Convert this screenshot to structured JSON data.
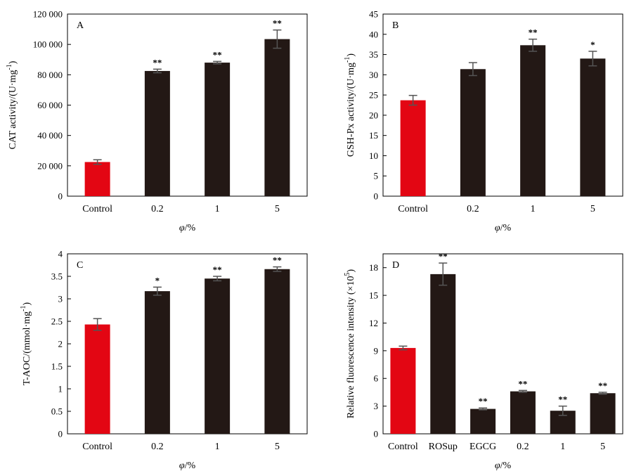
{
  "chart_data": [
    {
      "type": "bar",
      "panel_label": "A",
      "categories": [
        "Control",
        "0.2",
        "1",
        "5"
      ],
      "values": [
        22500,
        82500,
        88000,
        103500
      ],
      "errors": [
        1500,
        1200,
        800,
        6000
      ],
      "significance": [
        "",
        "**",
        "**",
        "**"
      ],
      "bar_colors": [
        "#e30613",
        "#231815",
        "#231815",
        "#231815"
      ],
      "ylabel": "CAT activity/(U·mg",
      "ylabel_sup": "-1",
      "ylabel_end": ")",
      "xlabel_var": "φ",
      "xlabel_unit": "/%",
      "ylim": [
        0,
        120000
      ],
      "ticks": [
        0,
        20000,
        40000,
        60000,
        80000,
        100000,
        120000
      ],
      "tick_labels": [
        "0",
        "20 000",
        "40 000",
        "60 000",
        "80 000",
        "100 000",
        "120 000"
      ]
    },
    {
      "type": "bar",
      "panel_label": "B",
      "categories": [
        "Control",
        "0.2",
        "1",
        "5"
      ],
      "values": [
        23.7,
        31.4,
        37.3,
        34.0
      ],
      "errors": [
        1.2,
        1.6,
        1.5,
        1.8
      ],
      "significance": [
        "",
        "",
        "**",
        "*"
      ],
      "bar_colors": [
        "#e30613",
        "#231815",
        "#231815",
        "#231815"
      ],
      "ylabel": "GSH-Px activity/(U·mg",
      "ylabel_sup": "-1",
      "ylabel_end": ")",
      "xlabel_var": "φ",
      "xlabel_unit": "/%",
      "ylim": [
        0,
        45
      ],
      "ticks": [
        0,
        5,
        10,
        15,
        20,
        25,
        30,
        35,
        40,
        45
      ],
      "tick_labels": [
        "0",
        "5",
        "10",
        "15",
        "20",
        "25",
        "30",
        "35",
        "40",
        "45"
      ]
    },
    {
      "type": "bar",
      "panel_label": "C",
      "categories": [
        "Control",
        "0.2",
        "1",
        "5"
      ],
      "values": [
        2.43,
        3.17,
        3.45,
        3.66
      ],
      "errors": [
        0.13,
        0.09,
        0.05,
        0.05
      ],
      "significance": [
        "",
        "*",
        "**",
        "**"
      ],
      "bar_colors": [
        "#e30613",
        "#231815",
        "#231815",
        "#231815"
      ],
      "ylabel": "T-AOC/(mmol·mg",
      "ylabel_sup": "-1",
      "ylabel_end": ")",
      "xlabel_var": "φ",
      "xlabel_unit": "/%",
      "ylim": [
        0,
        4
      ],
      "ticks": [
        0,
        0.5,
        1,
        1.5,
        2,
        2.5,
        3,
        3.5,
        4
      ],
      "tick_labels": [
        "0",
        "0.5",
        "1",
        "1.5",
        "2",
        "2.5",
        "3",
        "3.5",
        "4"
      ]
    },
    {
      "type": "bar",
      "panel_label": "D",
      "categories": [
        "Control",
        "ROSup",
        "EGCG",
        "0.2",
        "1",
        "5"
      ],
      "values": [
        9.3,
        17.3,
        2.7,
        4.6,
        2.5,
        4.4
      ],
      "errors": [
        0.2,
        1.2,
        0.1,
        0.1,
        0.5,
        0.1
      ],
      "significance": [
        "",
        "**",
        "**",
        "**",
        "**",
        "**"
      ],
      "bar_colors": [
        "#e30613",
        "#231815",
        "#231815",
        "#231815",
        "#231815",
        "#231815"
      ],
      "ylabel": "Relative fluorescence intensity (×10",
      "ylabel_sup": "5",
      "ylabel_end": ")",
      "xlabel_var": "φ",
      "xlabel_unit": "/%",
      "ylim": [
        0,
        19.5
      ],
      "ticks": [
        0,
        3,
        6,
        9,
        12,
        15,
        18
      ],
      "tick_labels": [
        "0",
        "3",
        "6",
        "9",
        "12",
        "15",
        "18"
      ]
    }
  ]
}
